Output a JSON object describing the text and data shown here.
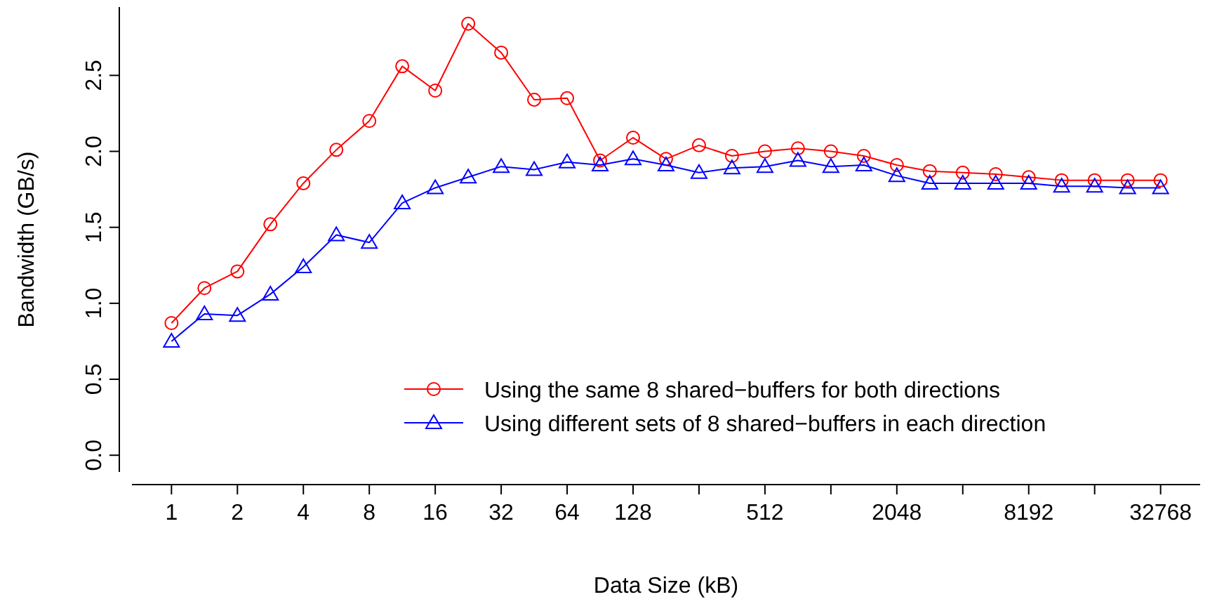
{
  "chart_data": {
    "type": "line",
    "xlabel": "Data Size (kB)",
    "ylabel": "Bandwidth (GB/s)",
    "log": "x",
    "x": [
      1,
      1.414,
      2,
      2.828,
      4,
      5.657,
      8,
      11.31,
      16,
      22.63,
      32,
      45.25,
      64,
      90.51,
      128,
      181,
      256,
      362,
      512,
      724.1,
      1024,
      1448,
      2048,
      2896,
      4096,
      5793,
      8192,
      11585,
      16384,
      23170,
      32768
    ],
    "series": [
      {
        "name": "Using the same 8 shared−buffers for both directions",
        "color": "#ff0000",
        "marker": "circle",
        "values": [
          0.87,
          1.1,
          1.21,
          1.52,
          1.79,
          2.01,
          2.2,
          2.56,
          2.4,
          2.84,
          2.65,
          2.34,
          2.35,
          1.94,
          2.09,
          1.95,
          2.04,
          1.97,
          2.0,
          2.02,
          2.0,
          1.97,
          1.91,
          1.87,
          1.86,
          1.85,
          1.83,
          1.81,
          1.81,
          1.81,
          1.81
        ]
      },
      {
        "name": "Using different sets of 8 shared−buffers in each direction",
        "color": "#0000ff",
        "marker": "triangle",
        "values": [
          0.75,
          0.93,
          0.92,
          1.06,
          1.24,
          1.45,
          1.4,
          1.66,
          1.76,
          1.83,
          1.9,
          1.88,
          1.93,
          1.91,
          1.95,
          1.91,
          1.86,
          1.89,
          1.9,
          1.94,
          1.9,
          1.91,
          1.84,
          1.79,
          1.79,
          1.79,
          1.79,
          1.77,
          1.77,
          1.76,
          1.76
        ]
      }
    ],
    "xlim": [
      0.66,
      49667
    ],
    "xticks": [
      1,
      2,
      4,
      8,
      16,
      32,
      64,
      128,
      {
        "value": 256,
        "label": null
      },
      512,
      {
        "value": 1024,
        "label": null
      },
      2048,
      {
        "value": 4096,
        "label": null
      },
      8192,
      {
        "value": 16384,
        "label": null
      },
      32768
    ],
    "ylim": [
      -0.11,
      2.95
    ],
    "yticks": [
      {
        "value": 0,
        "label": "0.0"
      },
      {
        "value": 0.5,
        "label": "0.5"
      },
      {
        "value": 1,
        "label": "1.0"
      },
      {
        "value": 1.5,
        "label": "1.5"
      },
      {
        "value": 2,
        "label": "2.0"
      },
      {
        "value": 2.5,
        "label": "2.5"
      }
    ],
    "legend": "bottom right",
    "grid": false,
    "line_style": "solid"
  }
}
